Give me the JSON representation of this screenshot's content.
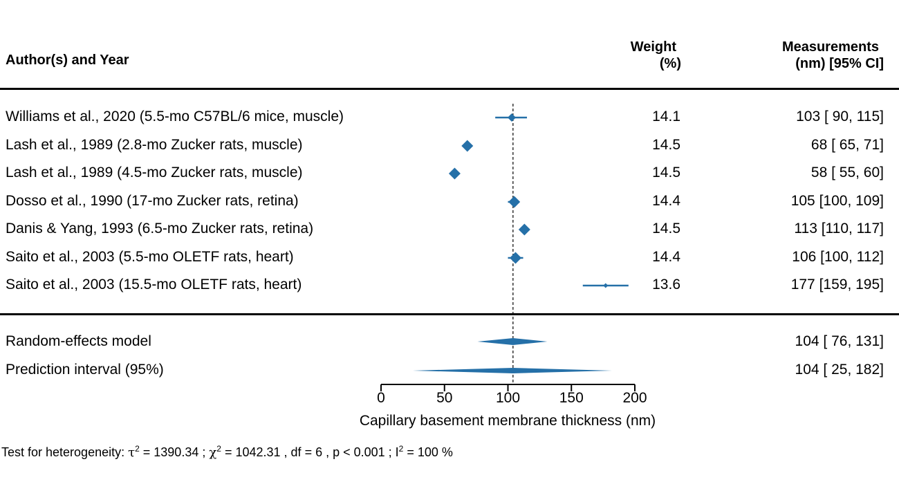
{
  "header": {
    "study_label": "Author(s) and Year",
    "weight_line1": "Weight",
    "weight_line2": "(%)",
    "meas_line1": "Measurements",
    "meas_line2": "(nm) [95% CI]"
  },
  "colors": {
    "marker": "#2570a8",
    "text": "#000000"
  },
  "studies": [
    {
      "label": "Williams et al., 2020 (5.5-mo C57BL/6 mice, muscle)",
      "weight": "14.1",
      "ci_text": "103 [ 90, 115]"
    },
    {
      "label": "Lash et al., 1989 (2.8-mo Zucker rats, muscle)",
      "weight": "14.5",
      "ci_text": "68 [ 65,  71]"
    },
    {
      "label": "Lash et al., 1989 (4.5-mo Zucker rats, muscle)",
      "weight": "14.5",
      "ci_text": "58 [ 55,  60]"
    },
    {
      "label": "Dosso et al., 1990 (17-mo Zucker rats, retina)",
      "weight": "14.4",
      "ci_text": "105 [100, 109]"
    },
    {
      "label": "Danis & Yang, 1993 (6.5-mo Zucker rats, retina)",
      "weight": "14.5",
      "ci_text": "113 [110, 117]"
    },
    {
      "label": "Saito et al., 2003 (5.5-mo OLETF rats, heart)",
      "weight": "14.4",
      "ci_text": "106 [100, 112]"
    },
    {
      "label": "Saito et al., 2003 (15.5-mo OLETF rats, heart)",
      "weight": "13.6",
      "ci_text": "177 [159, 195]"
    }
  ],
  "summary": [
    {
      "label": "Random-effects model",
      "ci_text": "104 [ 76, 131]"
    },
    {
      "label": "Prediction interval (95%)",
      "ci_text": "104 [ 25, 182]"
    }
  ],
  "footer": {
    "prefix": "Test for heterogeneity:  ",
    "tau_sym": "τ",
    "tau_sup": "2",
    "tau_val": " = 1390.34 ;  ",
    "chi_sym": "χ",
    "chi_sup": "2",
    "chi_val": " = 1042.31 , df = 6 ,  p < 0.001 ;  I",
    "i_sup": "2",
    "i_val": " = 100 %"
  },
  "chart_data": {
    "type": "forest",
    "xlabel": "Capillary basement membrane thickness (nm)",
    "xlim": [
      0,
      200
    ],
    "xticks": [
      0,
      50,
      100,
      150,
      200
    ],
    "reference_line": 104,
    "series": [
      {
        "name": "Williams et al., 2020 (5.5-mo C57BL/6 mice, muscle)",
        "estimate": 103,
        "lower": 90,
        "upper": 115,
        "weight": 14.1
      },
      {
        "name": "Lash et al., 1989 (2.8-mo Zucker rats, muscle)",
        "estimate": 68,
        "lower": 65,
        "upper": 71,
        "weight": 14.5
      },
      {
        "name": "Lash et al., 1989 (4.5-mo Zucker rats, muscle)",
        "estimate": 58,
        "lower": 55,
        "upper": 60,
        "weight": 14.5
      },
      {
        "name": "Dosso et al., 1990 (17-mo Zucker rats, retina)",
        "estimate": 105,
        "lower": 100,
        "upper": 109,
        "weight": 14.4
      },
      {
        "name": "Danis & Yang, 1993 (6.5-mo Zucker rats, retina)",
        "estimate": 113,
        "lower": 110,
        "upper": 117,
        "weight": 14.5
      },
      {
        "name": "Saito et al., 2003 (5.5-mo OLETF rats, heart)",
        "estimate": 106,
        "lower": 100,
        "upper": 112,
        "weight": 14.4
      },
      {
        "name": "Saito et al., 2003 (15.5-mo OLETF rats, heart)",
        "estimate": 177,
        "lower": 159,
        "upper": 195,
        "weight": 13.6
      }
    ],
    "pooled": [
      {
        "name": "Random-effects model",
        "estimate": 104,
        "lower": 76,
        "upper": 131
      },
      {
        "name": "Prediction interval (95%)",
        "estimate": 104,
        "lower": 25,
        "upper": 182
      }
    ]
  }
}
